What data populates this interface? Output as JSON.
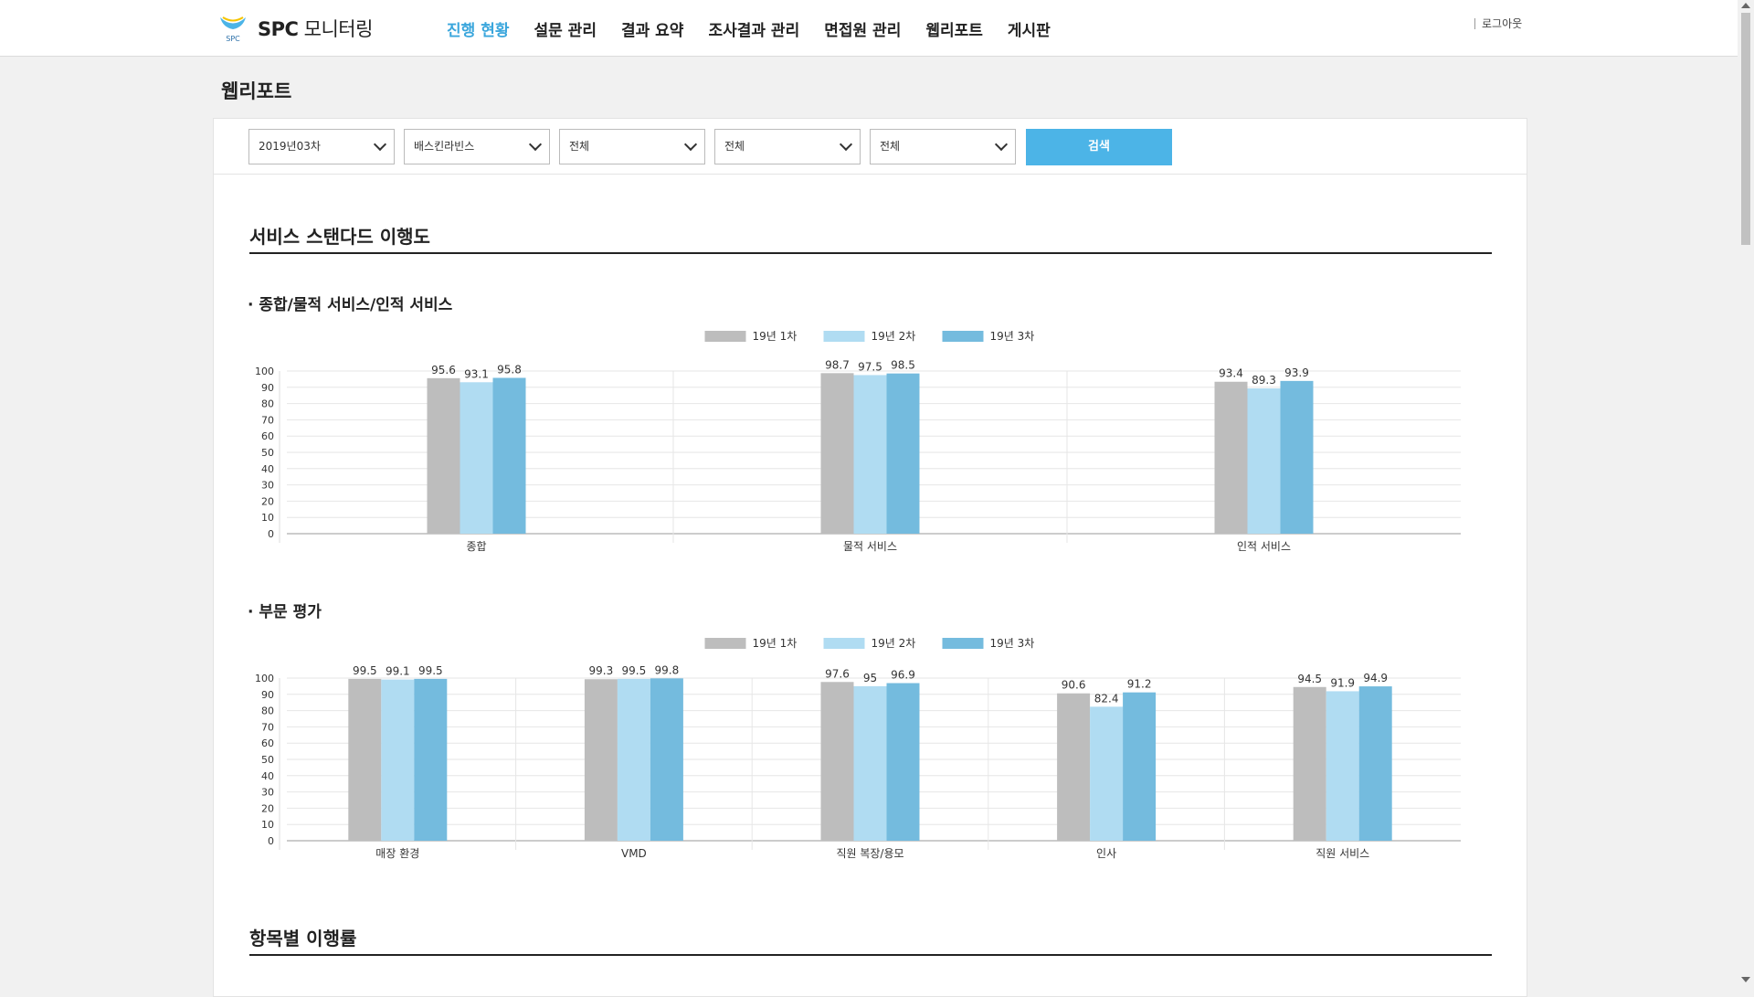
{
  "app": {
    "logo_brand": "SPC",
    "logo_title": "모니터링",
    "logo_small": "SPC"
  },
  "nav": [
    {
      "label": "진행 현황",
      "active": true
    },
    {
      "label": "설문 관리",
      "active": false
    },
    {
      "label": "결과 요약",
      "active": false
    },
    {
      "label": "조사결과 관리",
      "active": false
    },
    {
      "label": "면접원 관리",
      "active": false
    },
    {
      "label": "웹리포트",
      "active": false
    },
    {
      "label": "게시판",
      "active": false
    }
  ],
  "logout_label": "로그아웃",
  "page_title": "웹리포트",
  "filters": {
    "selects": [
      {
        "value": "2019년03차"
      },
      {
        "value": "배스킨라빈스"
      },
      {
        "value": "전체"
      },
      {
        "value": "전체"
      },
      {
        "value": "전체"
      }
    ],
    "search_label": "검색"
  },
  "sections": {
    "compliance_title": "서비스 스탠다드 이행도",
    "overall_title": "· 종합/물적 서비스/인적 서비스",
    "division_title": "· 부문 평가",
    "item_rate_title": "항목별 이행률"
  },
  "colors": {
    "series1": "#bdbdbd",
    "series2": "#b0dcf2",
    "series3": "#74bbde",
    "accent": "#3aa6dc",
    "button": "#4cb4e7"
  },
  "chart_data": [
    {
      "type": "bar",
      "categories": [
        "종합",
        "물적 서비스",
        "인적 서비스"
      ],
      "series": [
        {
          "name": "19년 1차",
          "values": [
            95.6,
            98.7,
            93.4
          ]
        },
        {
          "name": "19년 2차",
          "values": [
            93.1,
            97.5,
            89.3
          ]
        },
        {
          "name": "19년 3차",
          "values": [
            95.8,
            98.5,
            93.9
          ]
        }
      ],
      "ylim": [
        0,
        100
      ],
      "yticks": [
        0,
        10,
        20,
        30,
        40,
        50,
        60,
        70,
        80,
        90,
        100
      ],
      "legend": "top-center",
      "grid": true
    },
    {
      "type": "bar",
      "categories": [
        "매장 환경",
        "VMD",
        "직원 복장/용모",
        "인사",
        "직원 서비스"
      ],
      "series": [
        {
          "name": "19년 1차",
          "values": [
            99.5,
            99.3,
            97.6,
            90.6,
            94.5
          ]
        },
        {
          "name": "19년 2차",
          "values": [
            99.1,
            99.5,
            95,
            82.4,
            91.9
          ]
        },
        {
          "name": "19년 3차",
          "values": [
            99.5,
            99.8,
            96.9,
            91.2,
            94.9
          ]
        }
      ],
      "ylim": [
        0,
        100
      ],
      "yticks": [
        0,
        10,
        20,
        30,
        40,
        50,
        60,
        70,
        80,
        90,
        100
      ],
      "legend": "top-center",
      "grid": true
    }
  ]
}
